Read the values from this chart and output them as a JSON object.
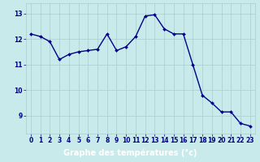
{
  "hours": [
    0,
    1,
    2,
    3,
    4,
    5,
    6,
    7,
    8,
    9,
    10,
    11,
    12,
    13,
    14,
    15,
    16,
    17,
    18,
    19,
    20,
    21,
    22,
    23
  ],
  "temperatures": [
    12.2,
    12.1,
    11.9,
    11.2,
    11.4,
    11.5,
    11.55,
    11.6,
    12.2,
    11.55,
    11.7,
    12.1,
    12.9,
    12.95,
    12.4,
    12.2,
    12.2,
    11.0,
    9.8,
    9.5,
    9.15,
    9.15,
    8.7,
    8.6
  ],
  "line_color": "#00008B",
  "marker_color": "#00008B",
  "bg_color": "#c8eaea",
  "grid_color": "#aacccc",
  "xlabel": "Graphe des températures (°c)",
  "xlabel_bg_color": "#4040c0",
  "xlabel_text_color": "#ffffff",
  "tick_label_color": "#00008B",
  "xlim": [
    -0.5,
    23.5
  ],
  "ylim": [
    8.3,
    13.4
  ],
  "yticks": [
    9,
    10,
    11,
    12,
    13
  ],
  "xticks": [
    0,
    1,
    2,
    3,
    4,
    5,
    6,
    7,
    8,
    9,
    10,
    11,
    12,
    13,
    14,
    15,
    16,
    17,
    18,
    19,
    20,
    21,
    22,
    23
  ],
  "tick_label_fontsize": 5.5,
  "xlabel_fontsize": 7,
  "linewidth": 1.0,
  "markersize": 2.0
}
